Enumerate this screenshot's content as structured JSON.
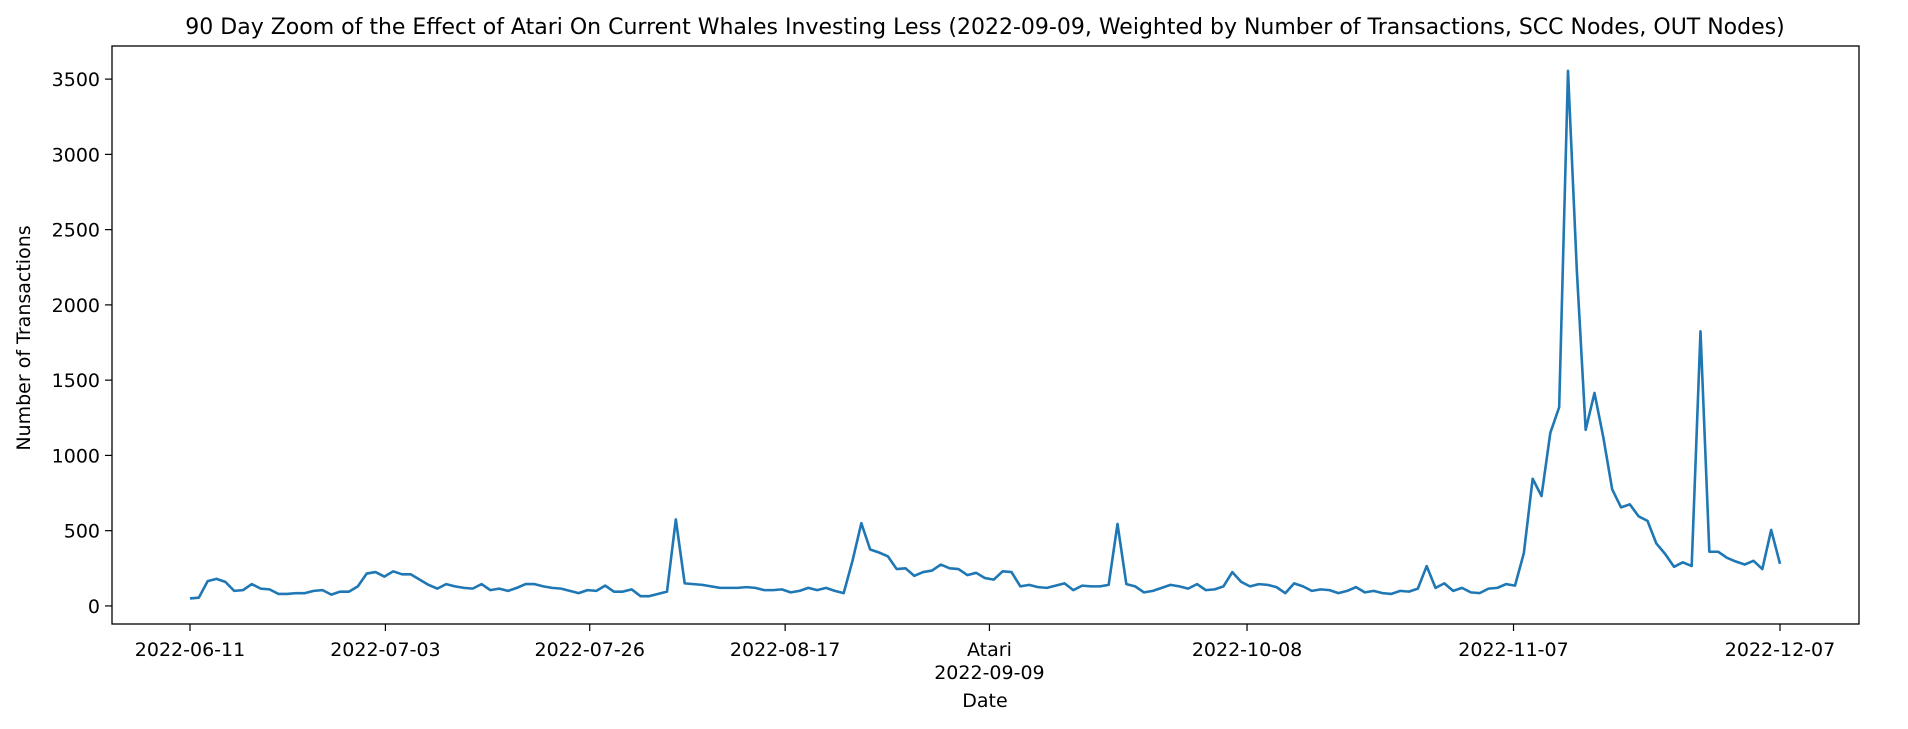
{
  "chart_data": {
    "type": "line",
    "title": "90 Day Zoom of the Effect of Atari On Current Whales Investing Less (2022-09-09, Weighted by Number of Transactions, SCC Nodes, OUT Nodes)",
    "xlabel": "Date",
    "ylabel": "Number of Transactions",
    "x_start": "2022-06-11",
    "x_end": "2022-12-07",
    "ylim": [
      -120,
      3720
    ],
    "yticks": [
      0,
      500,
      1000,
      1500,
      2000,
      2500,
      3000,
      3500
    ],
    "xticks": [
      "2022-06-11",
      "2022-07-03",
      "2022-07-26",
      "2022-08-17",
      "2022-09-09",
      "2022-10-08",
      "2022-11-07",
      "2022-12-07"
    ],
    "event": {
      "label": "Atari",
      "date": "2022-09-09"
    },
    "grid": false,
    "line_color": "#1f77b4",
    "series": [
      {
        "values": [
          50,
          55,
          165,
          180,
          160,
          100,
          105,
          145,
          115,
          110,
          80,
          80,
          85,
          85,
          100,
          105,
          75,
          95,
          95,
          130,
          215,
          225,
          195,
          230,
          210,
          210,
          175,
          140,
          115,
          145,
          130,
          120,
          115,
          145,
          105,
          115,
          100,
          120,
          145,
          145,
          130,
          120,
          115,
          100,
          85,
          105,
          100,
          135,
          95,
          95,
          110,
          65,
          65,
          80,
          95,
          575,
          150,
          145,
          140,
          130,
          120,
          120,
          120,
          125,
          120,
          105,
          105,
          110,
          90,
          100,
          120,
          105,
          120,
          100,
          85,
          300,
          550,
          375,
          355,
          330,
          245,
          250,
          200,
          225,
          235,
          275,
          250,
          245,
          205,
          220,
          185,
          175,
          230,
          225,
          130,
          140,
          125,
          120,
          135,
          150,
          105,
          135,
          130,
          130,
          140,
          545,
          145,
          130,
          90,
          100,
          120,
          140,
          130,
          115,
          145,
          105,
          110,
          130,
          225,
          160,
          130,
          145,
          140,
          125,
          85,
          150,
          130,
          100,
          110,
          105,
          85,
          100,
          125,
          90,
          100,
          85,
          80,
          100,
          95,
          115,
          265,
          120,
          150,
          100,
          120,
          90,
          85,
          115,
          120,
          145,
          135,
          350,
          845,
          730,
          1150,
          1320,
          3555,
          2230,
          1170,
          1415,
          1120,
          775,
          655,
          675,
          595,
          565,
          415,
          345,
          260,
          290,
          265,
          1825,
          360,
          360,
          320,
          295,
          275,
          300,
          245,
          505,
          280
        ]
      }
    ]
  }
}
